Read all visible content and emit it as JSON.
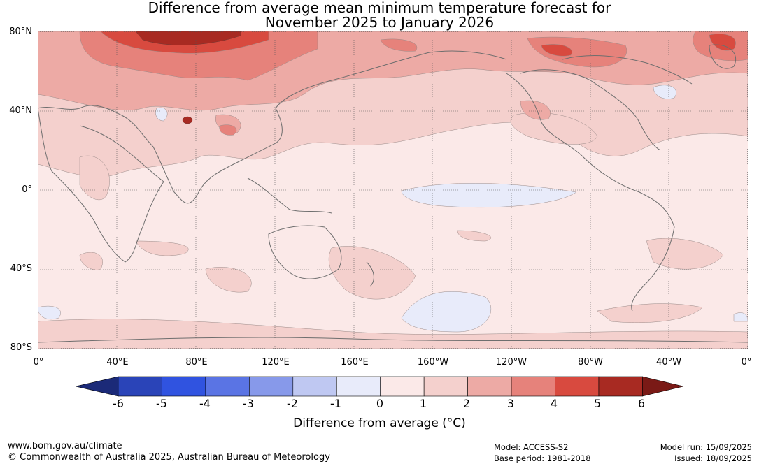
{
  "title_line1": "Difference from average mean minimum temperature forecast for",
  "title_line2": "November 2025 to January 2026",
  "lat_labels": [
    "80°N",
    "40°N",
    "0°",
    "40°S",
    "80°S"
  ],
  "lon_labels": [
    "0°",
    "40°E",
    "80°E",
    "120°E",
    "160°E",
    "160°W",
    "120°W",
    "80°W",
    "40°W",
    "0°"
  ],
  "colorbar": {
    "ticks": [
      "-6",
      "-5",
      "-4",
      "-3",
      "-2",
      "-1",
      "0",
      "1",
      "2",
      "3",
      "4",
      "5",
      "6"
    ],
    "colors": [
      "#1b2a78",
      "#2a44b8",
      "#3053e0",
      "#5a74e4",
      "#8799ea",
      "#bfc8f2",
      "#e8ebfa",
      "#fbe9e8",
      "#f4d0cd",
      "#edaaa5",
      "#e6827b",
      "#d84a3f",
      "#a82a22",
      "#7a1a16"
    ],
    "label": "Difference from average (°C)"
  },
  "footer": {
    "url": "www.bom.gov.au/climate",
    "copyright": "© Commonwealth of Australia 2025, Australian Bureau of Meteorology",
    "model": "Model: ACCESS-S2",
    "base_period": "Base period: 1981-2018",
    "model_run": "Model run: 15/09/2025",
    "issued": "Issued: 18/09/2025"
  }
}
